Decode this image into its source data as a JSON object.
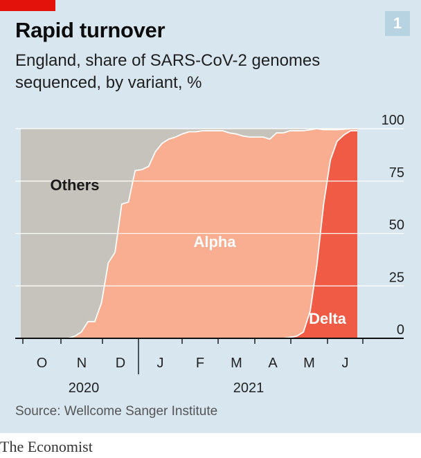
{
  "header": {
    "badge": "1",
    "title": "Rapid turnover",
    "subtitle": "England, share of SARS-CoV-2 genomes sequenced, by variant, %"
  },
  "footer": {
    "source": "Source: Wellcome Sanger Institute",
    "brand": "The Economist"
  },
  "chart_data": {
    "type": "area",
    "stacked": true,
    "x_unit": "week (2020-09 to 2021-06)",
    "x_tick_labels": [
      "O",
      "N",
      "D",
      "J",
      "F",
      "M",
      "A",
      "M",
      "J"
    ],
    "year_labels": [
      "2020",
      "2021"
    ],
    "y_ticks": [
      0,
      25,
      50,
      75,
      100
    ],
    "ylim": [
      0,
      100
    ],
    "grid": true,
    "colors": {
      "others": "#c5c3bb",
      "alpha": "#f9ad91",
      "delta": "#ef5b45",
      "background": "#d8e6ef",
      "title_bar": "#e3120b"
    },
    "series": [
      {
        "name": "Delta",
        "values": [
          0,
          0,
          0,
          0,
          0,
          0,
          0,
          0,
          0,
          0,
          0,
          0,
          0,
          0,
          0,
          0,
          0,
          0,
          0,
          0,
          0,
          0,
          0,
          0,
          0,
          0,
          0,
          0,
          0,
          0,
          0,
          0,
          0,
          0,
          0,
          0,
          0,
          0,
          0,
          0,
          0.5,
          1,
          3,
          13,
          35,
          64,
          85,
          94,
          97,
          99,
          99
        ]
      },
      {
        "name": "Alpha",
        "values": [
          0,
          0,
          0,
          0,
          0,
          0,
          0,
          0,
          1,
          3,
          8,
          8,
          17,
          36,
          41,
          64,
          65,
          80,
          80.5,
          82,
          89,
          93,
          95,
          96,
          97.5,
          98.5,
          98.5,
          99,
          99,
          99,
          99,
          98,
          97.5,
          96.5,
          96,
          96,
          96,
          95,
          98,
          98,
          98.5,
          98,
          96,
          86.5,
          65,
          35.5,
          14.5,
          5.5,
          2.7,
          1,
          1
        ]
      },
      {
        "name": "Others",
        "values": [
          100,
          100,
          100,
          100,
          100,
          100,
          100,
          100,
          99,
          97,
          92,
          92,
          83,
          64,
          59,
          36,
          35,
          20,
          19.5,
          18,
          11,
          7,
          5,
          4,
          2.5,
          1.5,
          1.5,
          1,
          1,
          1,
          1,
          2,
          2.5,
          3.5,
          4,
          4,
          4,
          5,
          2,
          2,
          1,
          1,
          1,
          0.5,
          0,
          0.5,
          0.5,
          0.5,
          0.3,
          0,
          0
        ]
      }
    ],
    "annotations": [
      "Others",
      "Alpha",
      "Delta"
    ]
  }
}
